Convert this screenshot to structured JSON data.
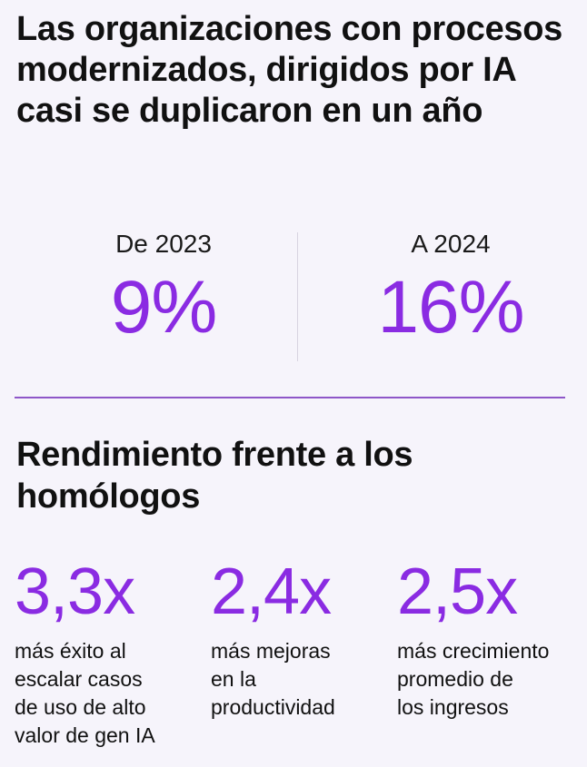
{
  "header": {
    "title": "Las organizaciones con procesos modernizados, dirigidos por IA casi se duplicaron en un año"
  },
  "comparison": {
    "from": {
      "label": "De 2023",
      "value": "9%"
    },
    "to": {
      "label": "A 2024",
      "value": "16%"
    }
  },
  "performance": {
    "title": "Rendimiento frente a los homólogos",
    "metrics": [
      {
        "value": "3,3x",
        "description": "más éxito al\nescalar casos\nde uso de alto\nvalor de gen IA"
      },
      {
        "value": "2,4x",
        "description": "más mejoras\nen la\nproductividad"
      },
      {
        "value": "2,5x",
        "description": "más crecimiento\npromedio de\nlos ingresos"
      }
    ]
  },
  "colors": {
    "accent": "#8a2be2",
    "divider": "#8e56c8",
    "background": "#f6f4fb"
  }
}
